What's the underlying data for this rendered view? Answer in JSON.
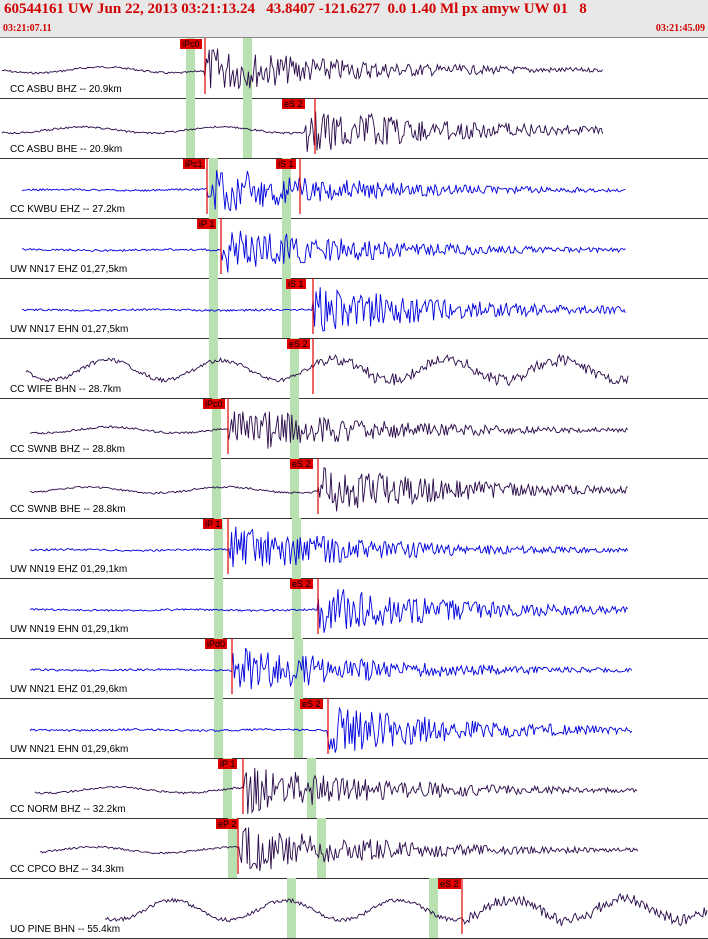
{
  "header": {
    "title": "60544161 UW Jun 22, 2013 03:21:13.24   43.8407 -121.6277  0.0 1.40 Ml px amyw UW 01   8",
    "start_time": "03:21:07.11",
    "end_time": "03:21:45.09"
  },
  "colors": {
    "header_text": "#d00000",
    "pick": "#e00000",
    "trace_dark": "#2a0a4a",
    "trace_blue": "#0000dd",
    "band": "#b8e0b0",
    "grid": "#333333"
  },
  "traces": [
    {
      "label": "CC ASBU BHZ -- 20.9km",
      "pick": "iPc0",
      "color": "dark"
    },
    {
      "label": "CC ASBU BHE -- 20.9km",
      "pick": "eS 2",
      "color": "dark"
    },
    {
      "label": "CC KWBU EHZ -- 27.2km",
      "pick": "iPc1",
      "pick2": "iS 1",
      "color": "blue"
    },
    {
      "label": "UW NN17 EHZ 01,27,5km",
      "pick": "iP 1",
      "color": "blue"
    },
    {
      "label": "UW NN17 EHN 01,27,5km",
      "pick": "iS 1",
      "color": "blue"
    },
    {
      "label": "CC WIFE BHN -- 28.7km",
      "pick": "eS 2",
      "color": "dark"
    },
    {
      "label": "CC SWNB BHZ -- 28.8km",
      "pick": "iPc0",
      "color": "dark"
    },
    {
      "label": "CC SWNB BHE -- 28.8km",
      "pick": "eS 2",
      "color": "dark"
    },
    {
      "label": "UW NN19 EHZ 01,29,1km",
      "pick": "iP 1",
      "color": "blue"
    },
    {
      "label": "UW NN19 EHN 01,29,1km",
      "pick": "eS 2",
      "color": "blue"
    },
    {
      "label": "UW NN21 EHZ 01,29,6km",
      "pick": "iPd0",
      "color": "blue"
    },
    {
      "label": "UW NN21 EHN 01,29,6km",
      "pick": "eS 2",
      "color": "blue"
    },
    {
      "label": "CC NORM BHZ -- 32.2km",
      "pick": "iP 1",
      "color": "dark"
    },
    {
      "label": "CC CPCO BHZ -- 34.3km",
      "pick": "eP 2",
      "color": "dark"
    },
    {
      "label": "UO PINE BHN -- 55.4km",
      "pick": "eS 2",
      "color": "dark"
    }
  ]
}
